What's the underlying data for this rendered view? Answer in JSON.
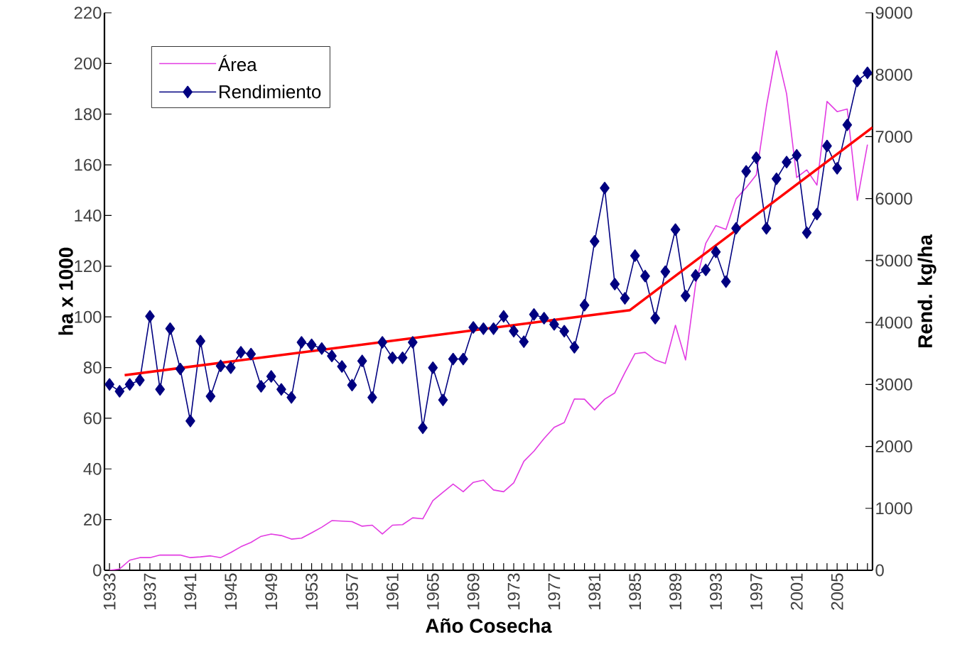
{
  "chart_data": {
    "type": "line",
    "xlabel": "Año Cosecha",
    "ylabel": "ha x 1000",
    "y2label": "Rend. kg/ha",
    "x": [
      1933,
      1934,
      1935,
      1936,
      1937,
      1938,
      1939,
      1940,
      1941,
      1942,
      1943,
      1944,
      1945,
      1946,
      1947,
      1948,
      1949,
      1950,
      1951,
      1952,
      1953,
      1954,
      1955,
      1956,
      1957,
      1958,
      1959,
      1960,
      1961,
      1962,
      1963,
      1964,
      1965,
      1966,
      1967,
      1968,
      1969,
      1970,
      1971,
      1972,
      1973,
      1974,
      1975,
      1976,
      1977,
      1978,
      1979,
      1980,
      1981,
      1982,
      1983,
      1984,
      1985,
      1986,
      1987,
      1988,
      1989,
      1990,
      1991,
      1992,
      1993,
      1994,
      1995,
      1996,
      1997,
      1998,
      1999,
      2000,
      2001,
      2002,
      2003,
      2004,
      2005,
      2006,
      2007,
      2008
    ],
    "xlim": [
      1932.5,
      2008.5
    ],
    "xticks": [
      1933,
      {
        "value": 1934,
        "label": null
      },
      {
        "value": 1935,
        "label": null
      },
      {
        "value": 1936,
        "label": null
      },
      1937,
      {
        "value": 1938,
        "label": null
      },
      {
        "value": 1939,
        "label": null
      },
      {
        "value": 1940,
        "label": null
      },
      1941,
      {
        "value": 1942,
        "label": null
      },
      {
        "value": 1943,
        "label": null
      },
      {
        "value": 1944,
        "label": null
      },
      1945,
      {
        "value": 1946,
        "label": null
      },
      {
        "value": 1947,
        "label": null
      },
      {
        "value": 1948,
        "label": null
      },
      1949,
      {
        "value": 1950,
        "label": null
      },
      {
        "value": 1951,
        "label": null
      },
      {
        "value": 1952,
        "label": null
      },
      1953,
      {
        "value": 1954,
        "label": null
      },
      {
        "value": 1955,
        "label": null
      },
      {
        "value": 1956,
        "label": null
      },
      1957,
      {
        "value": 1958,
        "label": null
      },
      {
        "value": 1959,
        "label": null
      },
      {
        "value": 1960,
        "label": null
      },
      1961,
      {
        "value": 1962,
        "label": null
      },
      {
        "value": 1963,
        "label": null
      },
      {
        "value": 1964,
        "label": null
      },
      1965,
      {
        "value": 1966,
        "label": null
      },
      {
        "value": 1967,
        "label": null
      },
      {
        "value": 1968,
        "label": null
      },
      1969,
      {
        "value": 1970,
        "label": null
      },
      {
        "value": 1971,
        "label": null
      },
      {
        "value": 1972,
        "label": null
      },
      1973,
      {
        "value": 1974,
        "label": null
      },
      {
        "value": 1975,
        "label": null
      },
      {
        "value": 1976,
        "label": null
      },
      1977,
      {
        "value": 1978,
        "label": null
      },
      {
        "value": 1979,
        "label": null
      },
      {
        "value": 1980,
        "label": null
      },
      1981,
      {
        "value": 1982,
        "label": null
      },
      {
        "value": 1983,
        "label": null
      },
      {
        "value": 1984,
        "label": null
      },
      1985,
      {
        "value": 1986,
        "label": null
      },
      {
        "value": 1987,
        "label": null
      },
      {
        "value": 1988,
        "label": null
      },
      1989,
      {
        "value": 1990,
        "label": null
      },
      {
        "value": 1991,
        "label": null
      },
      {
        "value": 1992,
        "label": null
      },
      1993,
      {
        "value": 1994,
        "label": null
      },
      {
        "value": 1995,
        "label": null
      },
      {
        "value": 1996,
        "label": null
      },
      1997,
      {
        "value": 1998,
        "label": null
      },
      {
        "value": 1999,
        "label": null
      },
      {
        "value": 2000,
        "label": null
      },
      2001,
      {
        "value": 2002,
        "label": null
      },
      {
        "value": 2003,
        "label": null
      },
      {
        "value": 2004,
        "label": null
      },
      2005,
      {
        "value": 2006,
        "label": null
      },
      {
        "value": 2007,
        "label": null
      },
      {
        "value": 2008,
        "label": null
      }
    ],
    "ylim": [
      0,
      220
    ],
    "yticks": [
      0,
      20,
      40,
      60,
      80,
      100,
      120,
      140,
      160,
      180,
      200,
      220
    ],
    "y2lim": [
      0,
      9000
    ],
    "y2ticks": [
      0,
      1000,
      2000,
      3000,
      4000,
      5000,
      6000,
      7000,
      8000,
      9000
    ],
    "legend": "top left",
    "grid": false,
    "series": [
      {
        "name": "Área",
        "color": "#e23be2",
        "marker": "none",
        "values": [
          0,
          0.5,
          4,
          5,
          5,
          6,
          6,
          6,
          5,
          5.3,
          5.7,
          5,
          7,
          9.3,
          11,
          13.4,
          14.3,
          13.7,
          12.3,
          12.7,
          14.8,
          17,
          19.6,
          19.4,
          19.2,
          17.4,
          17.8,
          14.3,
          17.8,
          18,
          20.7,
          20.3,
          27.5,
          30.8,
          34,
          31,
          34.7,
          35.6,
          31.7,
          31,
          34.5,
          43,
          47,
          52,
          56.4,
          58.3,
          67.6,
          67.5,
          63.3,
          67.5,
          70,
          78,
          85.5,
          86,
          83,
          81.6,
          96.7,
          83,
          113,
          129,
          136,
          134.5,
          146.6,
          151,
          156,
          183,
          205,
          188,
          155,
          158,
          152,
          185,
          181,
          182,
          146,
          168
        ]
      },
      {
        "name": "Rendimiento",
        "color": "#000080",
        "marker": "diamond",
        "axis": "y2",
        "values": [
          3000,
          2890,
          3000,
          3070,
          4100,
          2920,
          3900,
          3250,
          2410,
          3700,
          2810,
          3300,
          3270,
          3520,
          3490,
          2970,
          3130,
          2920,
          2790,
          3680,
          3640,
          3580,
          3460,
          3290,
          2990,
          3380,
          2790,
          3680,
          3430,
          3430,
          3680,
          2300,
          3270,
          2750,
          3410,
          3410,
          3920,
          3900,
          3900,
          4100,
          3860,
          3690,
          4130,
          4070,
          3970,
          3860,
          3600,
          4280,
          5310,
          6170,
          4620,
          4390,
          5080,
          4750,
          4070,
          4820,
          5500,
          4430,
          4760,
          4850,
          5140,
          4660,
          5520,
          6440,
          6660,
          5520,
          6320,
          6590,
          6700,
          5450,
          5750,
          6850,
          6490,
          7190,
          7900,
          8030
        ]
      },
      {
        "type": "line",
        "color": "#ff0000",
        "marker": "none",
        "axis": "y2",
        "x": [
          1934.5,
          1984.5,
          2008.5
        ],
        "values": [
          3150,
          4200,
          7150
        ]
      }
    ]
  }
}
